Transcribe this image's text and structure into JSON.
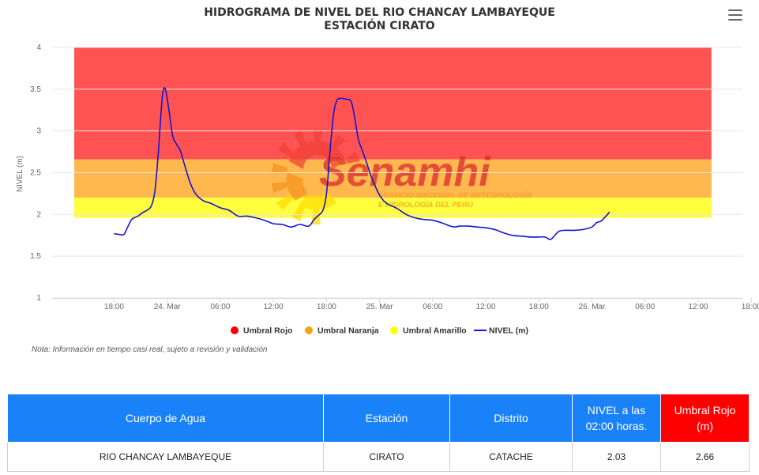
{
  "chart_data": {
    "type": "line",
    "title": "HIDROGRAMA DE NIVEL DEL RIO CHANCAY LAMBAYEQUE",
    "subtitle": "ESTACIÓN CIRATO",
    "ylabel": "NIVEL (m)",
    "xlabel": "",
    "ylim": [
      1,
      4
    ],
    "yticks": [
      "1",
      "1.5",
      "2",
      "2.5",
      "3",
      "3.5",
      "4"
    ],
    "xlim_hours": [
      -7,
      71
    ],
    "xticks": [
      {
        "h": 0,
        "label": "18:00"
      },
      {
        "h": 6,
        "label": "24. Mar"
      },
      {
        "h": 12,
        "label": "06:00"
      },
      {
        "h": 18,
        "label": "12:00"
      },
      {
        "h": 24,
        "label": "18:00"
      },
      {
        "h": 30,
        "label": "25. Mar"
      },
      {
        "h": 36,
        "label": "06:00"
      },
      {
        "h": 42,
        "label": "12:00"
      },
      {
        "h": 48,
        "label": "18:00"
      },
      {
        "h": 54,
        "label": "26. Mar"
      },
      {
        "h": 60,
        "label": "06:00"
      },
      {
        "h": 66,
        "label": "12:00"
      },
      {
        "h": 72,
        "label": "18:00"
      }
    ],
    "bands": [
      {
        "name": "Umbral Rojo",
        "from": 2.66,
        "to": 4.0,
        "color": "#ff5252"
      },
      {
        "name": "Umbral Naranja",
        "from": 2.2,
        "to": 2.66,
        "color": "#ffb84d"
      },
      {
        "name": "Umbral Amarillo",
        "from": 1.96,
        "to": 2.2,
        "color": "#ffff3d"
      }
    ],
    "series": [
      {
        "name": "NIVEL (m)",
        "color": "#1515cc",
        "x": [
          0,
          0.6,
          1.1,
          1.5,
          2,
          2.7,
          3.2,
          3.7,
          4.2,
          4.6,
          4.9,
          5.2,
          5.5,
          5.8,
          6.2,
          6.6,
          7,
          7.5,
          8,
          8.6,
          9.2,
          10,
          11,
          12,
          13,
          14,
          15,
          16,
          17,
          18,
          19,
          20,
          21,
          22,
          22.6,
          23,
          23.6,
          24,
          24.4,
          24.8,
          25.2,
          25.7,
          26.2,
          26.8,
          27.2,
          27.6,
          28,
          28.5,
          29,
          29.5,
          30,
          30.5,
          31,
          32,
          33,
          34,
          35,
          36,
          37,
          38,
          38.6,
          39,
          40,
          41,
          42,
          43,
          44,
          45,
          46,
          47,
          48,
          48.7,
          49.3,
          49.8,
          50.3,
          51,
          52,
          53,
          54,
          54.5,
          55,
          55.5,
          56
        ],
        "y": [
          1.77,
          1.76,
          1.76,
          1.84,
          1.94,
          1.98,
          2.02,
          2.05,
          2.1,
          2.27,
          2.6,
          3.05,
          3.45,
          3.5,
          3.25,
          2.95,
          2.85,
          2.76,
          2.58,
          2.38,
          2.25,
          2.17,
          2.13,
          2.08,
          2.05,
          1.98,
          1.98,
          1.96,
          1.93,
          1.89,
          1.88,
          1.85,
          1.88,
          1.86,
          1.94,
          1.98,
          2.05,
          2.25,
          2.75,
          3.2,
          3.37,
          3.39,
          3.38,
          3.35,
          3.15,
          2.9,
          2.78,
          2.63,
          2.47,
          2.34,
          2.23,
          2.16,
          2.12,
          2.07,
          2.0,
          1.96,
          1.94,
          1.93,
          1.9,
          1.86,
          1.85,
          1.86,
          1.86,
          1.85,
          1.84,
          1.82,
          1.78,
          1.75,
          1.74,
          1.73,
          1.73,
          1.73,
          1.7,
          1.75,
          1.8,
          1.81,
          1.81,
          1.82,
          1.85,
          1.9,
          1.92,
          1.97,
          2.03
        ]
      }
    ],
    "legend": [
      "Umbral Rojo",
      "Umbral Naranja",
      "Umbral Amarillo",
      "NIVEL (m)"
    ],
    "legend_position": "bottom-center",
    "grid": true
  },
  "watermark": {
    "brand": "Senamhi",
    "line1": "SERVICIO NACIONAL DE METEOROLOGÍA",
    "line2": "E HIDROLOGÍA DEL PERÚ"
  },
  "note": "Nota: Información en tiempo casi real, sujeto a revisión y validación",
  "menu_icon": "hamburger-menu-icon",
  "table": {
    "headers": {
      "water_body": "Cuerpo de Agua",
      "station": "Estación",
      "district": "Distrito",
      "level": "NIVEL a las 02:00 horas.",
      "red_threshold": "Umbral Rojo (m)"
    },
    "row": {
      "water_body": "RIO CHANCAY LAMBAYEQUE",
      "station": "CIRATO",
      "district": "CATACHE",
      "level": "2.03",
      "red_threshold": "2.66"
    },
    "colors": {
      "header": "#1a82f8",
      "red_header": "#ff0000"
    }
  }
}
